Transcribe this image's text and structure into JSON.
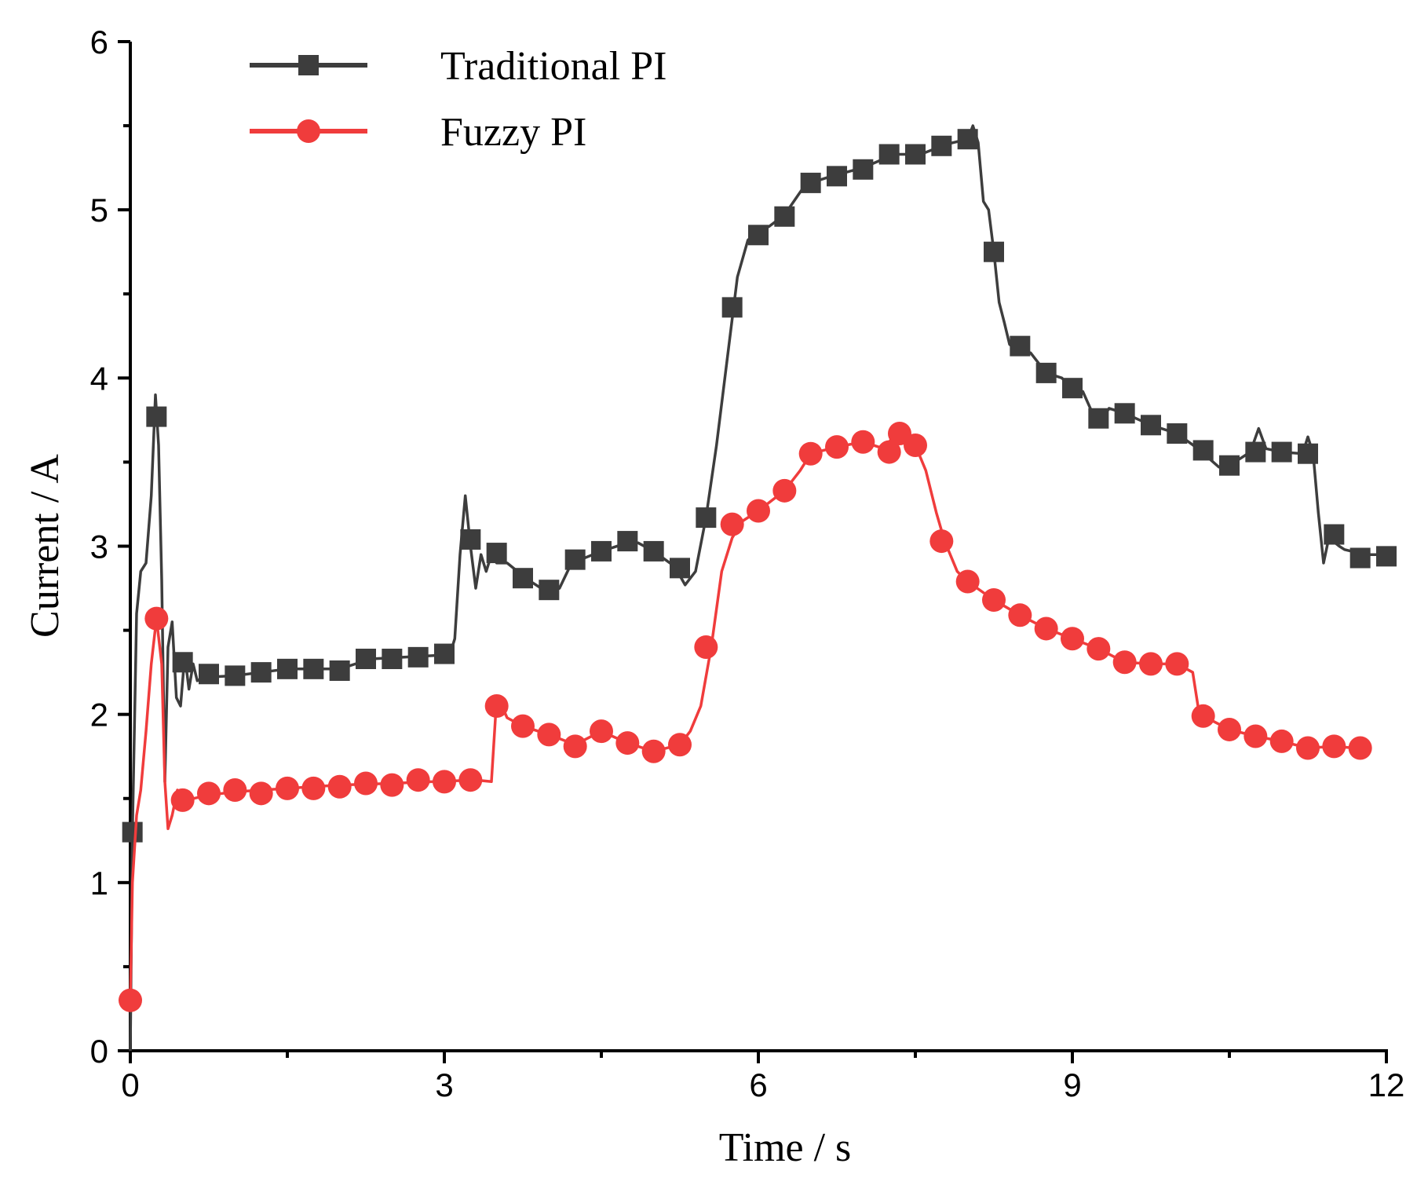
{
  "chart_data": {
    "type": "line",
    "title": "",
    "xlabel": "Time / s",
    "ylabel": "Current / A",
    "xlim": [
      0,
      12
    ],
    "ylim": [
      0,
      6
    ],
    "xticks": [
      0,
      3,
      6,
      9,
      12
    ],
    "xtick_labels": [
      "0",
      "3",
      "6",
      "9",
      "12"
    ],
    "xminor": [
      1.5,
      4.5,
      7.5,
      10.5
    ],
    "yticks": [
      0,
      1,
      2,
      3,
      4,
      5,
      6
    ],
    "ytick_labels": [
      "0",
      "1",
      "2",
      "3",
      "4",
      "5",
      "6"
    ],
    "yminor": [
      0.5,
      1.5,
      2.5,
      3.5,
      4.5,
      5.5
    ],
    "grid": false,
    "legend_position": "top-left",
    "series": [
      {
        "name": "Traditional PI",
        "color": "#3d3d3d",
        "marker": "square",
        "line": [
          [
            0,
            0
          ],
          [
            0.02,
            1.3
          ],
          [
            0.06,
            2.6
          ],
          [
            0.1,
            2.85
          ],
          [
            0.15,
            2.9
          ],
          [
            0.2,
            3.3
          ],
          [
            0.24,
            3.9
          ],
          [
            0.27,
            3.6
          ],
          [
            0.3,
            2.8
          ],
          [
            0.33,
            1.6
          ],
          [
            0.36,
            2.4
          ],
          [
            0.4,
            2.55
          ],
          [
            0.44,
            2.1
          ],
          [
            0.48,
            2.05
          ],
          [
            0.52,
            2.35
          ],
          [
            0.56,
            2.15
          ],
          [
            0.6,
            2.3
          ],
          [
            0.64,
            2.2
          ],
          [
            0.7,
            2.22
          ],
          [
            1.0,
            2.23
          ],
          [
            1.5,
            2.27
          ],
          [
            2.0,
            2.27
          ],
          [
            2.3,
            2.33
          ],
          [
            2.6,
            2.34
          ],
          [
            2.9,
            2.35
          ],
          [
            3.05,
            2.35
          ],
          [
            3.1,
            2.45
          ],
          [
            3.15,
            2.95
          ],
          [
            3.2,
            3.3
          ],
          [
            3.25,
            3.0
          ],
          [
            3.3,
            2.75
          ],
          [
            3.35,
            2.95
          ],
          [
            3.4,
            2.85
          ],
          [
            3.45,
            2.95
          ],
          [
            3.5,
            2.9
          ],
          [
            3.6,
            2.9
          ],
          [
            3.7,
            2.85
          ],
          [
            3.8,
            2.8
          ],
          [
            4.0,
            2.72
          ],
          [
            4.1,
            2.75
          ],
          [
            4.2,
            2.88
          ],
          [
            4.3,
            2.92
          ],
          [
            4.5,
            2.97
          ],
          [
            4.75,
            3.02
          ],
          [
            4.85,
            3.02
          ],
          [
            5.0,
            2.97
          ],
          [
            5.2,
            2.88
          ],
          [
            5.3,
            2.77
          ],
          [
            5.4,
            2.85
          ],
          [
            5.5,
            3.17
          ],
          [
            5.6,
            3.6
          ],
          [
            5.7,
            4.1
          ],
          [
            5.8,
            4.6
          ],
          [
            5.9,
            4.82
          ],
          [
            6.0,
            4.88
          ],
          [
            6.1,
            4.9
          ],
          [
            6.25,
            4.97
          ],
          [
            6.45,
            5.15
          ],
          [
            6.7,
            5.2
          ],
          [
            7.0,
            5.25
          ],
          [
            7.3,
            5.33
          ],
          [
            7.55,
            5.33
          ],
          [
            7.8,
            5.39
          ],
          [
            8.0,
            5.42
          ],
          [
            8.05,
            5.5
          ],
          [
            8.1,
            5.4
          ],
          [
            8.15,
            5.05
          ],
          [
            8.2,
            5.0
          ],
          [
            8.25,
            4.75
          ],
          [
            8.3,
            4.45
          ],
          [
            8.35,
            4.33
          ],
          [
            8.4,
            4.2
          ],
          [
            8.5,
            4.15
          ],
          [
            8.6,
            4.15
          ],
          [
            8.75,
            4.03
          ],
          [
            8.9,
            4.0
          ],
          [
            9.0,
            3.93
          ],
          [
            9.1,
            3.92
          ],
          [
            9.2,
            3.78
          ],
          [
            9.3,
            3.77
          ],
          [
            9.35,
            3.82
          ],
          [
            9.5,
            3.79
          ],
          [
            9.75,
            3.72
          ],
          [
            10.0,
            3.67
          ],
          [
            10.2,
            3.58
          ],
          [
            10.4,
            3.47
          ],
          [
            10.5,
            3.48
          ],
          [
            10.7,
            3.56
          ],
          [
            10.78,
            3.7
          ],
          [
            10.85,
            3.58
          ],
          [
            11.0,
            3.56
          ],
          [
            11.2,
            3.55
          ],
          [
            11.25,
            3.65
          ],
          [
            11.3,
            3.55
          ],
          [
            11.35,
            3.2
          ],
          [
            11.4,
            2.9
          ],
          [
            11.45,
            3.05
          ],
          [
            11.55,
            3.0
          ],
          [
            11.6,
            2.98
          ],
          [
            11.8,
            2.95
          ],
          [
            12.0,
            2.95
          ]
        ],
        "markers": [
          [
            0.02,
            1.3
          ],
          [
            0.25,
            3.77
          ],
          [
            0.5,
            2.31
          ],
          [
            0.75,
            2.24
          ],
          [
            1.0,
            2.23
          ],
          [
            1.25,
            2.25
          ],
          [
            1.5,
            2.27
          ],
          [
            1.75,
            2.27
          ],
          [
            2.0,
            2.26
          ],
          [
            2.25,
            2.33
          ],
          [
            2.5,
            2.33
          ],
          [
            2.75,
            2.34
          ],
          [
            3.0,
            2.36
          ],
          [
            3.25,
            3.04
          ],
          [
            3.5,
            2.96
          ],
          [
            3.75,
            2.81
          ],
          [
            4.0,
            2.74
          ],
          [
            4.25,
            2.92
          ],
          [
            4.5,
            2.97
          ],
          [
            4.75,
            3.03
          ],
          [
            5.0,
            2.97
          ],
          [
            5.25,
            2.87
          ],
          [
            5.5,
            3.17
          ],
          [
            5.75,
            4.42
          ],
          [
            6.0,
            4.85
          ],
          [
            6.25,
            4.96
          ],
          [
            6.5,
            5.16
          ],
          [
            6.75,
            5.2
          ],
          [
            7.0,
            5.24
          ],
          [
            7.25,
            5.33
          ],
          [
            7.5,
            5.33
          ],
          [
            7.75,
            5.38
          ],
          [
            8.0,
            5.42
          ],
          [
            8.25,
            4.75
          ],
          [
            8.5,
            4.19
          ],
          [
            8.75,
            4.03
          ],
          [
            9.0,
            3.94
          ],
          [
            9.25,
            3.76
          ],
          [
            9.5,
            3.79
          ],
          [
            9.75,
            3.72
          ],
          [
            10.0,
            3.67
          ],
          [
            10.25,
            3.57
          ],
          [
            10.5,
            3.48
          ],
          [
            10.75,
            3.56
          ],
          [
            11.0,
            3.56
          ],
          [
            11.25,
            3.55
          ],
          [
            11.5,
            3.07
          ],
          [
            11.75,
            2.93
          ],
          [
            12.0,
            2.94
          ]
        ]
      },
      {
        "name": "Fuzzy PI",
        "color": "#f03c3c",
        "marker": "circle",
        "line": [
          [
            0,
            0.3
          ],
          [
            0.02,
            1.0
          ],
          [
            0.06,
            1.4
          ],
          [
            0.1,
            1.55
          ],
          [
            0.15,
            1.9
          ],
          [
            0.2,
            2.3
          ],
          [
            0.25,
            2.57
          ],
          [
            0.3,
            2.3
          ],
          [
            0.33,
            1.6
          ],
          [
            0.36,
            1.32
          ],
          [
            0.4,
            1.4
          ],
          [
            0.45,
            1.55
          ],
          [
            0.5,
            1.48
          ],
          [
            0.6,
            1.5
          ],
          [
            0.75,
            1.52
          ],
          [
            1.0,
            1.54
          ],
          [
            1.5,
            1.56
          ],
          [
            2.0,
            1.58
          ],
          [
            2.5,
            1.59
          ],
          [
            2.9,
            1.6
          ],
          [
            3.3,
            1.61
          ],
          [
            3.45,
            1.6
          ],
          [
            3.5,
            2.1
          ],
          [
            3.55,
            2.05
          ],
          [
            3.6,
            1.98
          ],
          [
            3.75,
            1.93
          ],
          [
            4.0,
            1.88
          ],
          [
            4.25,
            1.82
          ],
          [
            4.5,
            1.9
          ],
          [
            4.75,
            1.83
          ],
          [
            5.0,
            1.78
          ],
          [
            5.25,
            1.82
          ],
          [
            5.35,
            1.9
          ],
          [
            5.45,
            2.05
          ],
          [
            5.55,
            2.4
          ],
          [
            5.65,
            2.85
          ],
          [
            5.75,
            3.05
          ],
          [
            5.85,
            3.15
          ],
          [
            6.0,
            3.21
          ],
          [
            6.25,
            3.33
          ],
          [
            6.4,
            3.45
          ],
          [
            6.5,
            3.55
          ],
          [
            6.75,
            3.59
          ],
          [
            7.0,
            3.62
          ],
          [
            7.2,
            3.58
          ],
          [
            7.3,
            3.66
          ],
          [
            7.4,
            3.65
          ],
          [
            7.5,
            3.6
          ],
          [
            7.6,
            3.45
          ],
          [
            7.7,
            3.2
          ],
          [
            7.78,
            3.03
          ],
          [
            7.9,
            2.85
          ],
          [
            8.0,
            2.79
          ],
          [
            8.25,
            2.68
          ],
          [
            8.5,
            2.59
          ],
          [
            8.75,
            2.51
          ],
          [
            9.0,
            2.45
          ],
          [
            9.25,
            2.39
          ],
          [
            9.5,
            2.31
          ],
          [
            9.75,
            2.3
          ],
          [
            10.0,
            2.3
          ],
          [
            10.15,
            2.25
          ],
          [
            10.2,
            2.05
          ],
          [
            10.25,
            1.99
          ],
          [
            10.5,
            1.91
          ],
          [
            10.75,
            1.87
          ],
          [
            11.0,
            1.84
          ],
          [
            11.25,
            1.8
          ],
          [
            11.5,
            1.81
          ],
          [
            11.7,
            1.8
          ]
        ],
        "markers": [
          [
            0.0,
            0.3
          ],
          [
            0.25,
            2.57
          ],
          [
            0.5,
            1.49
          ],
          [
            0.75,
            1.53
          ],
          [
            1.0,
            1.55
          ],
          [
            1.25,
            1.53
          ],
          [
            1.5,
            1.56
          ],
          [
            1.75,
            1.56
          ],
          [
            2.0,
            1.57
          ],
          [
            2.25,
            1.59
          ],
          [
            2.5,
            1.58
          ],
          [
            2.75,
            1.61
          ],
          [
            3.0,
            1.6
          ],
          [
            3.25,
            1.61
          ],
          [
            3.5,
            2.05
          ],
          [
            3.75,
            1.93
          ],
          [
            4.0,
            1.88
          ],
          [
            4.25,
            1.81
          ],
          [
            4.5,
            1.9
          ],
          [
            4.75,
            1.83
          ],
          [
            5.0,
            1.78
          ],
          [
            5.25,
            1.82
          ],
          [
            5.5,
            2.4
          ],
          [
            5.75,
            3.13
          ],
          [
            6.0,
            3.21
          ],
          [
            6.25,
            3.33
          ],
          [
            6.5,
            3.55
          ],
          [
            6.75,
            3.59
          ],
          [
            7.0,
            3.62
          ],
          [
            7.25,
            3.56
          ],
          [
            7.35,
            3.67
          ],
          [
            7.5,
            3.6
          ],
          [
            7.75,
            3.03
          ],
          [
            8.0,
            2.79
          ],
          [
            8.25,
            2.68
          ],
          [
            8.5,
            2.59
          ],
          [
            8.75,
            2.51
          ],
          [
            9.0,
            2.45
          ],
          [
            9.25,
            2.39
          ],
          [
            9.5,
            2.31
          ],
          [
            9.75,
            2.3
          ],
          [
            10.0,
            2.3
          ],
          [
            10.25,
            1.99
          ],
          [
            10.5,
            1.91
          ],
          [
            10.75,
            1.87
          ],
          [
            11.0,
            1.84
          ],
          [
            11.25,
            1.8
          ],
          [
            11.5,
            1.81
          ],
          [
            11.75,
            1.8
          ]
        ]
      }
    ]
  }
}
